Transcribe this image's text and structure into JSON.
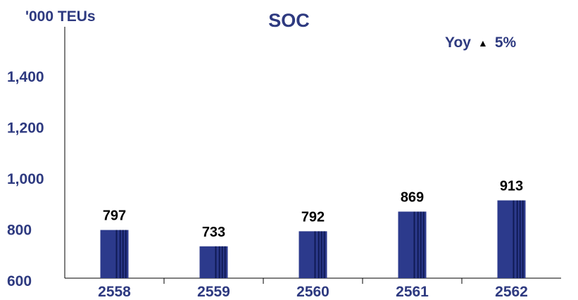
{
  "chart_data": {
    "type": "bar",
    "title": "SOC",
    "ylabel": "'000 TEUs",
    "xlabel": "",
    "categories": [
      "2558",
      "2559",
      "2560",
      "2561",
      "2562"
    ],
    "values": [
      797,
      733,
      792,
      869,
      913
    ],
    "value_labels": [
      "797",
      "733",
      "792",
      "869",
      "913"
    ],
    "ylim": [
      600,
      1500
    ],
    "yticks": [
      600,
      800,
      1000,
      1200,
      1400
    ],
    "ytick_labels": [
      "600",
      "800",
      "1,000",
      "1,200",
      "1,400"
    ],
    "grid": false,
    "annotation": {
      "label": "Yoy",
      "arrow": "▲",
      "value": "5%"
    }
  },
  "colors": {
    "bar": "#2c3a8c",
    "bar_stripe": "#0f1a55",
    "axis_text": "#2e3a80",
    "data_label": "#000000",
    "axis_line": "#000000"
  }
}
